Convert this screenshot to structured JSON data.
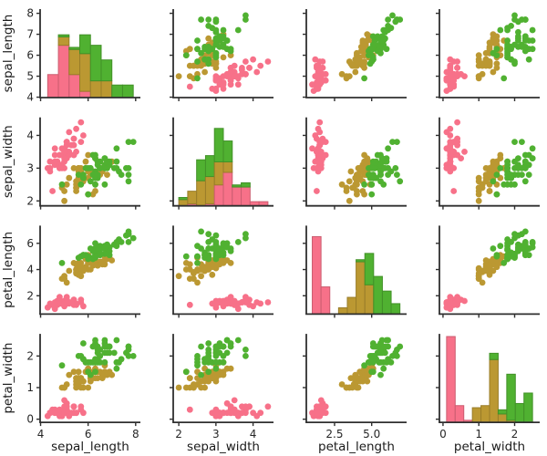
{
  "chart_data": {
    "type": "scatter",
    "variant": "pairplot-matrix",
    "title": "",
    "grid": false,
    "legend_position": "none",
    "diagonal": "stacked-histogram",
    "axis_color": "#2f2f2f",
    "background_color": "#ffffff",
    "variables": [
      {
        "name": "sepal_length",
        "label": "sepal_length",
        "range": [
          3.98,
          8.2
        ],
        "x_tick_values": [
          4,
          6,
          8
        ],
        "x_tick_labels": [
          "4",
          "6",
          "8"
        ],
        "y_tick_values": [
          4,
          5,
          6,
          7,
          8
        ],
        "y_tick_labels": [
          "4",
          "5",
          "6",
          "7",
          "8"
        ],
        "hist_bins": 8
      },
      {
        "name": "sepal_width",
        "label": "sepal_width",
        "range": [
          1.85,
          4.55
        ],
        "x_tick_values": [
          2,
          3,
          4
        ],
        "x_tick_labels": [
          "2",
          "3",
          "4"
        ],
        "y_tick_values": [
          2,
          3,
          4
        ],
        "y_tick_labels": [
          "2",
          "3",
          "4"
        ],
        "hist_bins": 10
      },
      {
        "name": "petal_length",
        "label": "petal_length",
        "range": [
          0.6,
          7.35
        ],
        "x_tick_values": [
          2.5,
          5.0
        ],
        "x_tick_labels": [
          "2.5",
          "5.0"
        ],
        "y_tick_values": [
          2,
          4,
          6
        ],
        "y_tick_labels": [
          "2",
          "4",
          "6"
        ],
        "hist_bins": 10
      },
      {
        "name": "petal_width",
        "label": "petal_width",
        "range": [
          -0.1,
          2.7
        ],
        "x_tick_values": [
          0,
          1,
          2
        ],
        "x_tick_labels": [
          "0",
          "1",
          "2"
        ],
        "y_tick_values": [
          0,
          1,
          2
        ],
        "y_tick_labels": [
          "0",
          "1",
          "2"
        ],
        "hist_bins": 10
      }
    ],
    "series": [
      {
        "name": "pink",
        "color": "#f77189",
        "points": [
          [
            5.1,
            3.5,
            1.4,
            0.2
          ],
          [
            4.9,
            3.0,
            1.4,
            0.2
          ],
          [
            4.7,
            3.2,
            1.3,
            0.2
          ],
          [
            4.6,
            3.1,
            1.5,
            0.2
          ],
          [
            5.0,
            3.6,
            1.4,
            0.2
          ],
          [
            5.4,
            3.9,
            1.7,
            0.4
          ],
          [
            4.6,
            3.4,
            1.4,
            0.3
          ],
          [
            5.0,
            3.4,
            1.5,
            0.2
          ],
          [
            4.4,
            2.9,
            1.4,
            0.2
          ],
          [
            4.9,
            3.1,
            1.5,
            0.1
          ],
          [
            5.4,
            3.7,
            1.5,
            0.2
          ],
          [
            4.8,
            3.4,
            1.6,
            0.2
          ],
          [
            4.8,
            3.0,
            1.4,
            0.1
          ],
          [
            4.3,
            3.0,
            1.1,
            0.1
          ],
          [
            5.8,
            4.0,
            1.2,
            0.2
          ],
          [
            5.7,
            4.4,
            1.5,
            0.4
          ],
          [
            5.4,
            3.9,
            1.3,
            0.4
          ],
          [
            5.1,
            3.5,
            1.4,
            0.3
          ],
          [
            5.7,
            3.8,
            1.7,
            0.3
          ],
          [
            5.1,
            3.8,
            1.5,
            0.3
          ],
          [
            5.4,
            3.4,
            1.7,
            0.2
          ],
          [
            5.1,
            3.7,
            1.5,
            0.4
          ],
          [
            4.6,
            3.6,
            1.0,
            0.2
          ],
          [
            5.1,
            3.3,
            1.7,
            0.5
          ],
          [
            4.8,
            3.4,
            1.9,
            0.2
          ],
          [
            5.0,
            3.0,
            1.6,
            0.2
          ],
          [
            5.0,
            3.4,
            1.6,
            0.4
          ],
          [
            5.2,
            3.5,
            1.5,
            0.2
          ],
          [
            5.2,
            3.4,
            1.4,
            0.2
          ],
          [
            4.7,
            3.2,
            1.6,
            0.2
          ],
          [
            4.8,
            3.1,
            1.6,
            0.2
          ],
          [
            5.4,
            3.4,
            1.5,
            0.4
          ],
          [
            5.2,
            4.1,
            1.5,
            0.1
          ],
          [
            5.5,
            4.2,
            1.4,
            0.2
          ],
          [
            4.9,
            3.1,
            1.5,
            0.2
          ],
          [
            5.0,
            3.2,
            1.2,
            0.2
          ],
          [
            5.5,
            3.5,
            1.3,
            0.2
          ],
          [
            4.9,
            3.6,
            1.4,
            0.1
          ],
          [
            4.4,
            3.0,
            1.3,
            0.2
          ],
          [
            5.1,
            3.4,
            1.5,
            0.2
          ],
          [
            5.0,
            3.5,
            1.3,
            0.3
          ],
          [
            4.5,
            2.3,
            1.3,
            0.3
          ],
          [
            4.4,
            3.2,
            1.3,
            0.2
          ],
          [
            5.0,
            3.5,
            1.6,
            0.6
          ],
          [
            5.1,
            3.8,
            1.9,
            0.4
          ],
          [
            4.8,
            3.0,
            1.4,
            0.3
          ],
          [
            5.1,
            3.8,
            1.6,
            0.2
          ],
          [
            4.6,
            3.2,
            1.4,
            0.2
          ],
          [
            5.3,
            3.7,
            1.5,
            0.2
          ],
          [
            5.0,
            3.3,
            1.4,
            0.2
          ]
        ]
      },
      {
        "name": "gold",
        "color": "#bb9832",
        "points": [
          [
            7.0,
            3.2,
            4.7,
            1.4
          ],
          [
            6.4,
            3.2,
            4.5,
            1.5
          ],
          [
            6.9,
            3.1,
            4.9,
            1.5
          ],
          [
            5.5,
            2.3,
            4.0,
            1.3
          ],
          [
            6.5,
            2.8,
            4.6,
            1.5
          ],
          [
            5.7,
            2.8,
            4.5,
            1.3
          ],
          [
            6.3,
            3.3,
            4.7,
            1.6
          ],
          [
            4.9,
            2.4,
            3.3,
            1.0
          ],
          [
            6.6,
            2.9,
            4.6,
            1.3
          ],
          [
            5.2,
            2.7,
            3.9,
            1.4
          ],
          [
            5.0,
            2.0,
            3.5,
            1.0
          ],
          [
            5.9,
            3.0,
            4.2,
            1.5
          ],
          [
            6.0,
            2.2,
            4.0,
            1.0
          ],
          [
            6.1,
            2.9,
            4.7,
            1.4
          ],
          [
            5.6,
            2.9,
            3.6,
            1.3
          ],
          [
            6.7,
            3.1,
            4.4,
            1.4
          ],
          [
            5.6,
            3.0,
            4.5,
            1.5
          ],
          [
            5.8,
            2.7,
            4.1,
            1.0
          ],
          [
            6.2,
            2.2,
            4.5,
            1.5
          ],
          [
            5.6,
            2.5,
            3.9,
            1.1
          ],
          [
            5.9,
            3.2,
            4.8,
            1.8
          ],
          [
            6.1,
            2.8,
            4.0,
            1.3
          ],
          [
            6.3,
            2.5,
            4.9,
            1.5
          ],
          [
            6.1,
            2.8,
            4.7,
            1.2
          ],
          [
            6.4,
            2.9,
            4.3,
            1.3
          ],
          [
            6.6,
            3.0,
            4.4,
            1.4
          ],
          [
            6.8,
            2.8,
            4.8,
            1.4
          ],
          [
            6.7,
            3.0,
            5.0,
            1.7
          ],
          [
            6.0,
            2.9,
            4.5,
            1.5
          ],
          [
            5.7,
            2.6,
            3.5,
            1.0
          ],
          [
            5.5,
            2.4,
            3.8,
            1.1
          ],
          [
            5.5,
            2.4,
            3.7,
            1.0
          ],
          [
            5.8,
            2.7,
            3.9,
            1.2
          ],
          [
            6.0,
            2.7,
            5.1,
            1.6
          ],
          [
            5.4,
            3.0,
            4.5,
            1.5
          ],
          [
            6.0,
            3.4,
            4.5,
            1.6
          ],
          [
            6.7,
            3.1,
            4.7,
            1.5
          ],
          [
            6.3,
            2.3,
            4.4,
            1.3
          ],
          [
            5.6,
            3.0,
            4.1,
            1.3
          ],
          [
            5.5,
            2.5,
            4.0,
            1.3
          ],
          [
            5.5,
            2.6,
            4.4,
            1.2
          ],
          [
            6.1,
            3.0,
            4.6,
            1.4
          ],
          [
            5.8,
            2.6,
            4.0,
            1.2
          ],
          [
            5.0,
            2.3,
            3.3,
            1.0
          ],
          [
            5.6,
            2.7,
            4.2,
            1.3
          ],
          [
            5.7,
            3.0,
            4.2,
            1.2
          ],
          [
            5.7,
            2.9,
            4.2,
            1.3
          ],
          [
            6.2,
            2.9,
            4.3,
            1.3
          ],
          [
            5.1,
            2.5,
            3.0,
            1.1
          ],
          [
            5.7,
            2.8,
            4.1,
            1.3
          ]
        ]
      },
      {
        "name": "green",
        "color": "#50b131",
        "points": [
          [
            6.3,
            3.3,
            6.0,
            2.5
          ],
          [
            5.8,
            2.7,
            5.1,
            1.9
          ],
          [
            7.1,
            3.0,
            5.9,
            2.1
          ],
          [
            6.3,
            2.9,
            5.6,
            1.8
          ],
          [
            6.5,
            3.0,
            5.8,
            2.2
          ],
          [
            7.6,
            3.0,
            6.6,
            2.1
          ],
          [
            4.9,
            2.5,
            4.5,
            1.7
          ],
          [
            7.3,
            2.9,
            6.3,
            1.8
          ],
          [
            6.7,
            2.5,
            5.8,
            1.8
          ],
          [
            7.2,
            3.6,
            6.1,
            2.5
          ],
          [
            6.5,
            3.2,
            5.1,
            2.0
          ],
          [
            6.4,
            2.7,
            5.3,
            1.9
          ],
          [
            6.8,
            3.0,
            5.5,
            2.1
          ],
          [
            5.7,
            2.5,
            5.0,
            2.0
          ],
          [
            5.8,
            2.8,
            5.1,
            2.4
          ],
          [
            6.4,
            3.2,
            5.3,
            2.3
          ],
          [
            6.5,
            3.0,
            5.5,
            1.8
          ],
          [
            7.7,
            3.8,
            6.7,
            2.2
          ],
          [
            7.7,
            2.6,
            6.9,
            2.3
          ],
          [
            6.0,
            2.2,
            5.0,
            1.5
          ],
          [
            6.9,
            3.2,
            5.7,
            2.3
          ],
          [
            5.6,
            2.8,
            4.9,
            2.0
          ],
          [
            7.7,
            2.8,
            6.7,
            2.0
          ],
          [
            6.3,
            2.7,
            4.9,
            1.8
          ],
          [
            6.7,
            3.3,
            5.7,
            2.1
          ],
          [
            7.2,
            3.2,
            6.0,
            1.8
          ],
          [
            6.2,
            2.8,
            4.8,
            1.8
          ],
          [
            6.1,
            3.0,
            4.9,
            1.8
          ],
          [
            6.4,
            2.8,
            5.6,
            2.1
          ],
          [
            7.2,
            3.0,
            5.8,
            1.6
          ],
          [
            7.4,
            2.8,
            6.1,
            1.9
          ],
          [
            7.9,
            3.8,
            6.4,
            2.0
          ],
          [
            6.4,
            2.8,
            5.6,
            2.2
          ],
          [
            6.3,
            2.8,
            5.1,
            1.5
          ],
          [
            6.1,
            2.6,
            5.6,
            1.4
          ],
          [
            7.7,
            3.0,
            6.1,
            2.3
          ],
          [
            6.3,
            3.4,
            5.6,
            2.4
          ],
          [
            6.4,
            3.1,
            5.5,
            1.8
          ],
          [
            6.0,
            3.0,
            4.8,
            1.8
          ],
          [
            6.9,
            3.1,
            5.4,
            2.1
          ],
          [
            6.7,
            3.1,
            5.6,
            2.4
          ],
          [
            6.9,
            3.1,
            5.1,
            2.3
          ],
          [
            5.8,
            2.7,
            5.1,
            1.9
          ],
          [
            6.8,
            3.2,
            5.9,
            2.3
          ],
          [
            6.7,
            3.3,
            5.7,
            2.5
          ],
          [
            6.7,
            3.0,
            5.2,
            2.3
          ],
          [
            6.3,
            2.5,
            5.0,
            1.9
          ],
          [
            6.5,
            3.0,
            5.2,
            2.0
          ],
          [
            6.2,
            3.4,
            5.4,
            2.3
          ],
          [
            5.9,
            3.0,
            5.1,
            1.8
          ]
        ]
      }
    ]
  }
}
